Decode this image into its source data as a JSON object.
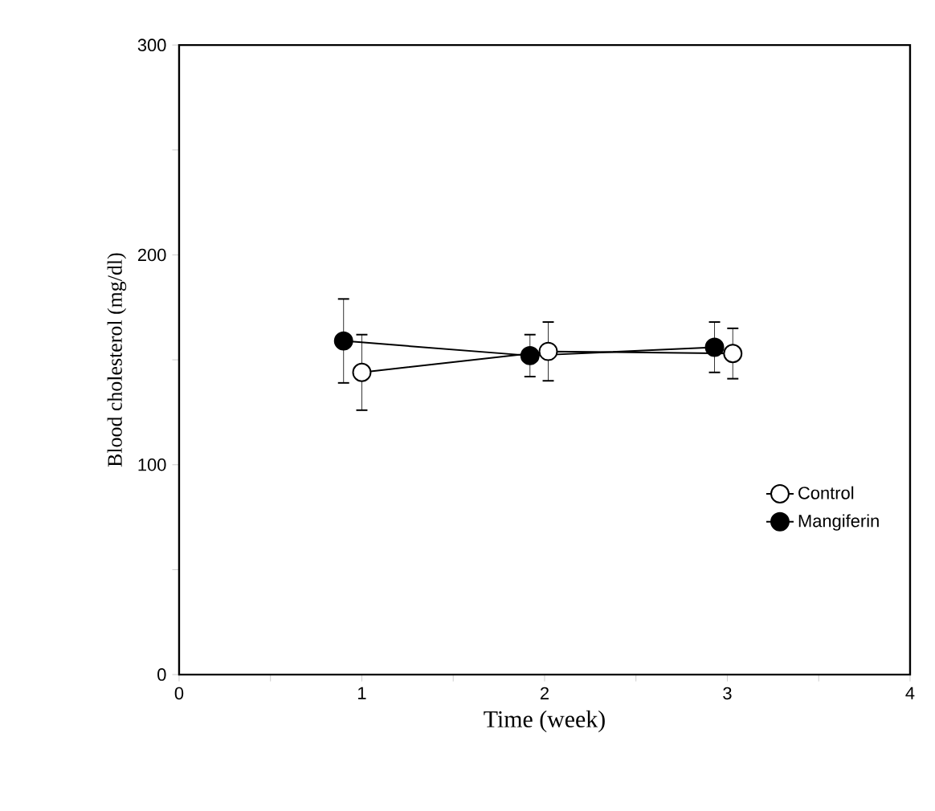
{
  "chart_data": {
    "type": "line",
    "xlabel": "Time (week)",
    "ylabel": "Blood cholesterol (mg/dl)",
    "xlim": [
      0,
      4
    ],
    "ylim": [
      0,
      300
    ],
    "xticks": [
      0,
      {
        "value": 0.5,
        "label": null
      },
      1,
      {
        "value": 1.5,
        "label": null
      },
      2,
      {
        "value": 2.5,
        "label": null
      },
      3,
      {
        "value": 3.5,
        "label": null
      },
      4
    ],
    "yticks": [
      0,
      {
        "value": 50,
        "label": null
      },
      100,
      {
        "value": 150,
        "label": null
      },
      200,
      {
        "value": 250,
        "label": null
      },
      300
    ],
    "series": [
      {
        "name": "Control",
        "color": "#ffffff",
        "x": [
          1.0,
          2.02,
          3.03
        ],
        "values": [
          144,
          154,
          153
        ],
        "errors": [
          18,
          14,
          12
        ]
      },
      {
        "name": "Mangiferin",
        "color": "#000000",
        "x": [
          0.9,
          1.92,
          2.93
        ],
        "values": [
          159,
          152,
          156
        ],
        "errors": [
          20,
          10,
          12
        ]
      }
    ],
    "marker": "circle",
    "line_style": "solid",
    "legend": "bottom right",
    "grid": false
  }
}
